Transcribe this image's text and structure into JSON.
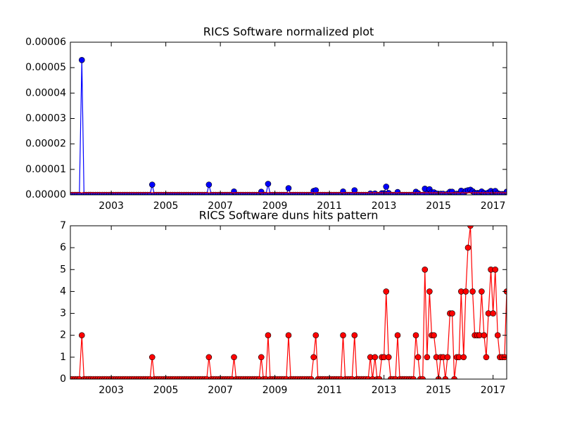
{
  "chart_data": [
    {
      "type": "line",
      "title": "RICS Software normalized plot",
      "x": [
        2001.5,
        2001.58,
        2001.67,
        2001.75,
        2001.83,
        2001.92,
        2002,
        2002.08,
        2002.17,
        2002.25,
        2002.33,
        2002.42,
        2002.5,
        2002.58,
        2002.67,
        2002.75,
        2002.83,
        2002.92,
        2003,
        2003.08,
        2003.17,
        2003.25,
        2003.33,
        2003.42,
        2003.5,
        2003.58,
        2003.67,
        2003.75,
        2003.83,
        2003.92,
        2004,
        2004.08,
        2004.17,
        2004.25,
        2004.33,
        2004.42,
        2004.5,
        2004.58,
        2004.67,
        2004.75,
        2004.83,
        2004.92,
        2005,
        2005.08,
        2005.17,
        2005.25,
        2005.33,
        2005.42,
        2005.5,
        2005.58,
        2005.67,
        2005.75,
        2005.83,
        2005.92,
        2006,
        2006.08,
        2006.17,
        2006.25,
        2006.33,
        2006.42,
        2006.5,
        2006.58,
        2006.67,
        2006.75,
        2006.83,
        2006.92,
        2007,
        2007.08,
        2007.17,
        2007.25,
        2007.33,
        2007.42,
        2007.5,
        2007.58,
        2007.67,
        2007.75,
        2007.83,
        2007.92,
        2008,
        2008.08,
        2008.17,
        2008.25,
        2008.33,
        2008.42,
        2008.5,
        2008.58,
        2008.67,
        2008.75,
        2008.83,
        2008.92,
        2009,
        2009.08,
        2009.17,
        2009.25,
        2009.33,
        2009.42,
        2009.5,
        2009.58,
        2009.67,
        2009.75,
        2009.83,
        2009.92,
        2010,
        2010.08,
        2010.17,
        2010.25,
        2010.33,
        2010.42,
        2010.5,
        2010.58,
        2010.67,
        2010.75,
        2010.83,
        2010.92,
        2011,
        2011.08,
        2011.17,
        2011.25,
        2011.33,
        2011.42,
        2011.5,
        2011.58,
        2011.67,
        2011.75,
        2011.83,
        2011.92,
        2012,
        2012.08,
        2012.17,
        2012.25,
        2012.33,
        2012.42,
        2012.5,
        2012.58,
        2012.67,
        2012.75,
        2012.83,
        2012.92,
        2013,
        2013.08,
        2013.17,
        2013.25,
        2013.33,
        2013.42,
        2013.5,
        2013.58,
        2013.67,
        2013.75,
        2013.83,
        2013.92,
        2014,
        2014.08,
        2014.17,
        2014.25,
        2014.33,
        2014.42,
        2014.5,
        2014.58,
        2014.67,
        2014.75,
        2014.83,
        2014.92,
        2015,
        2015.08,
        2015.17,
        2015.25,
        2015.33,
        2015.42,
        2015.5,
        2015.58,
        2015.67,
        2015.75,
        2015.83,
        2015.92,
        2016,
        2016.08,
        2016.17,
        2016.25,
        2016.33,
        2016.42,
        2016.5,
        2016.58,
        2016.67,
        2016.75,
        2016.83,
        2016.92,
        2017,
        2017.08,
        2017.17,
        2017.25,
        2017.33,
        2017.42,
        2017.5
      ],
      "series": [
        {
          "color": "#0000ff",
          "marker": true,
          "values": [
            0,
            0,
            0,
            0,
            0,
            5.3e-05,
            0,
            0,
            0,
            0,
            0,
            0,
            0,
            0,
            0,
            0,
            0,
            0,
            0,
            0,
            0,
            0,
            0,
            0,
            0,
            0,
            0,
            0,
            0,
            0,
            0,
            0,
            0,
            0,
            0,
            0,
            4e-06,
            0,
            0,
            0,
            0,
            0,
            0,
            0,
            0,
            0,
            0,
            0,
            0,
            0,
            0,
            0,
            0,
            0,
            0,
            0,
            0,
            0,
            0,
            0,
            0,
            4e-06,
            0,
            0,
            0,
            0,
            0,
            0,
            0,
            0,
            0,
            0,
            1.3e-06,
            0,
            0,
            0,
            0,
            0,
            0,
            0,
            0,
            0,
            0,
            0,
            1.2e-06,
            0,
            0,
            4.3e-06,
            0,
            0,
            0,
            0,
            0,
            0,
            0,
            0,
            2.6e-06,
            0,
            0,
            0,
            0,
            0,
            0,
            0,
            0,
            0,
            0,
            1.5e-06,
            1.8e-06,
            0,
            0,
            0,
            0,
            0,
            0,
            0,
            0,
            0,
            0,
            0,
            1.3e-06,
            0,
            0,
            0,
            0,
            1.8e-06,
            0,
            0,
            0,
            0,
            0,
            0,
            5e-07,
            0,
            5e-07,
            0,
            0,
            6e-07,
            6e-07,
            3.2e-06,
            7e-07,
            0,
            0,
            0,
            1.1e-06,
            0,
            0,
            0,
            0,
            0,
            0,
            0,
            1.2e-06,
            6e-07,
            0,
            0,
            2.4e-06,
            5e-07,
            2.2e-06,
            1e-06,
            1e-06,
            5e-07,
            0,
            4e-07,
            4e-07,
            0,
            4e-07,
            1.2e-06,
            1.2e-06,
            0,
            4e-07,
            4e-07,
            1.6e-06,
            4e-07,
            1.5e-06,
            1.8e-06,
            2e-06,
            1.4e-06,
            7e-07,
            7e-07,
            7e-07,
            1.3e-06,
            7e-07,
            3e-07,
            9e-07,
            1.5e-06,
            9e-07,
            1.5e-06,
            6e-07,
            3e-07,
            3e-07,
            3e-07,
            1.2e-06
          ]
        },
        {
          "color": "#ff0000",
          "marker": false,
          "x": [
            2001.5,
            2017.5
          ],
          "values": [
            8e-07,
            8e-07
          ]
        }
      ],
      "xlim": [
        2001.5,
        2017.5
      ],
      "xticks": [
        2003,
        2005,
        2007,
        2009,
        2011,
        2013,
        2015,
        2017
      ],
      "ylim": [
        0,
        6e-05
      ],
      "yticks": [
        {
          "value": 0,
          "label": "0.00000"
        },
        1e-05,
        2e-05,
        3e-05,
        4e-05,
        5e-05,
        6e-05
      ]
    },
    {
      "type": "line",
      "title": "RICS Software duns hits pattern",
      "x": [
        2001.5,
        2001.58,
        2001.67,
        2001.75,
        2001.83,
        2001.92,
        2002,
        2002.08,
        2002.17,
        2002.25,
        2002.33,
        2002.42,
        2002.5,
        2002.58,
        2002.67,
        2002.75,
        2002.83,
        2002.92,
        2003,
        2003.08,
        2003.17,
        2003.25,
        2003.33,
        2003.42,
        2003.5,
        2003.58,
        2003.67,
        2003.75,
        2003.83,
        2003.92,
        2004,
        2004.08,
        2004.17,
        2004.25,
        2004.33,
        2004.42,
        2004.5,
        2004.58,
        2004.67,
        2004.75,
        2004.83,
        2004.92,
        2005,
        2005.08,
        2005.17,
        2005.25,
        2005.33,
        2005.42,
        2005.5,
        2005.58,
        2005.67,
        2005.75,
        2005.83,
        2005.92,
        2006,
        2006.08,
        2006.17,
        2006.25,
        2006.33,
        2006.42,
        2006.5,
        2006.58,
        2006.67,
        2006.75,
        2006.83,
        2006.92,
        2007,
        2007.08,
        2007.17,
        2007.25,
        2007.33,
        2007.42,
        2007.5,
        2007.58,
        2007.67,
        2007.75,
        2007.83,
        2007.92,
        2008,
        2008.08,
        2008.17,
        2008.25,
        2008.33,
        2008.42,
        2008.5,
        2008.58,
        2008.67,
        2008.75,
        2008.83,
        2008.92,
        2009,
        2009.08,
        2009.17,
        2009.25,
        2009.33,
        2009.42,
        2009.5,
        2009.58,
        2009.67,
        2009.75,
        2009.83,
        2009.92,
        2010,
        2010.08,
        2010.17,
        2010.25,
        2010.33,
        2010.42,
        2010.5,
        2010.58,
        2010.67,
        2010.75,
        2010.83,
        2010.92,
        2011,
        2011.08,
        2011.17,
        2011.25,
        2011.33,
        2011.42,
        2011.5,
        2011.58,
        2011.67,
        2011.75,
        2011.83,
        2011.92,
        2012,
        2012.08,
        2012.17,
        2012.25,
        2012.33,
        2012.42,
        2012.5,
        2012.58,
        2012.67,
        2012.75,
        2012.83,
        2012.92,
        2013,
        2013.08,
        2013.17,
        2013.25,
        2013.33,
        2013.42,
        2013.5,
        2013.58,
        2013.67,
        2013.75,
        2013.83,
        2013.92,
        2014,
        2014.08,
        2014.17,
        2014.25,
        2014.33,
        2014.42,
        2014.5,
        2014.58,
        2014.67,
        2014.75,
        2014.83,
        2014.92,
        2015,
        2015.08,
        2015.17,
        2015.25,
        2015.33,
        2015.42,
        2015.5,
        2015.58,
        2015.67,
        2015.75,
        2015.83,
        2015.92,
        2016,
        2016.08,
        2016.17,
        2016.25,
        2016.33,
        2016.42,
        2016.5,
        2016.58,
        2016.67,
        2016.75,
        2016.83,
        2016.92,
        2017,
        2017.08,
        2017.17,
        2017.25,
        2017.33,
        2017.42,
        2017.5
      ],
      "series": [
        {
          "color": "#ff0000",
          "marker": true,
          "values": [
            0,
            0,
            0,
            0,
            0,
            2,
            0,
            0,
            0,
            0,
            0,
            0,
            0,
            0,
            0,
            0,
            0,
            0,
            0,
            0,
            0,
            0,
            0,
            0,
            0,
            0,
            0,
            0,
            0,
            0,
            0,
            0,
            0,
            0,
            0,
            0,
            1,
            0,
            0,
            0,
            0,
            0,
            0,
            0,
            0,
            0,
            0,
            0,
            0,
            0,
            0,
            0,
            0,
            0,
            0,
            0,
            0,
            0,
            0,
            0,
            0,
            1,
            0,
            0,
            0,
            0,
            0,
            0,
            0,
            0,
            0,
            0,
            1,
            0,
            0,
            0,
            0,
            0,
            0,
            0,
            0,
            0,
            0,
            0,
            1,
            0,
            0,
            2,
            0,
            0,
            0,
            0,
            0,
            0,
            0,
            0,
            2,
            0,
            0,
            0,
            0,
            0,
            0,
            0,
            0,
            0,
            0,
            1,
            2,
            0,
            0,
            0,
            0,
            0,
            0,
            0,
            0,
            0,
            0,
            0,
            2,
            0,
            0,
            0,
            0,
            2,
            0,
            0,
            0,
            0,
            0,
            0,
            1,
            0,
            1,
            0,
            0,
            1,
            1,
            4,
            1,
            0,
            0,
            0,
            2,
            0,
            0,
            0,
            0,
            0,
            0,
            0,
            2,
            1,
            0,
            0,
            5,
            1,
            4,
            2,
            2,
            1,
            0,
            1,
            1,
            0,
            1,
            3,
            3,
            0,
            1,
            1,
            4,
            1,
            4,
            6,
            7,
            4,
            2,
            2,
            2,
            4,
            2,
            1,
            3,
            5,
            3,
            5,
            2,
            1,
            1,
            1,
            4
          ]
        }
      ],
      "xlim": [
        2001.5,
        2017.5
      ],
      "xticks": [
        2003,
        2005,
        2007,
        2009,
        2011,
        2013,
        2015,
        2017
      ],
      "ylim": [
        0,
        7
      ],
      "yticks": [
        0,
        1,
        2,
        3,
        4,
        5,
        6,
        7
      ]
    }
  ]
}
